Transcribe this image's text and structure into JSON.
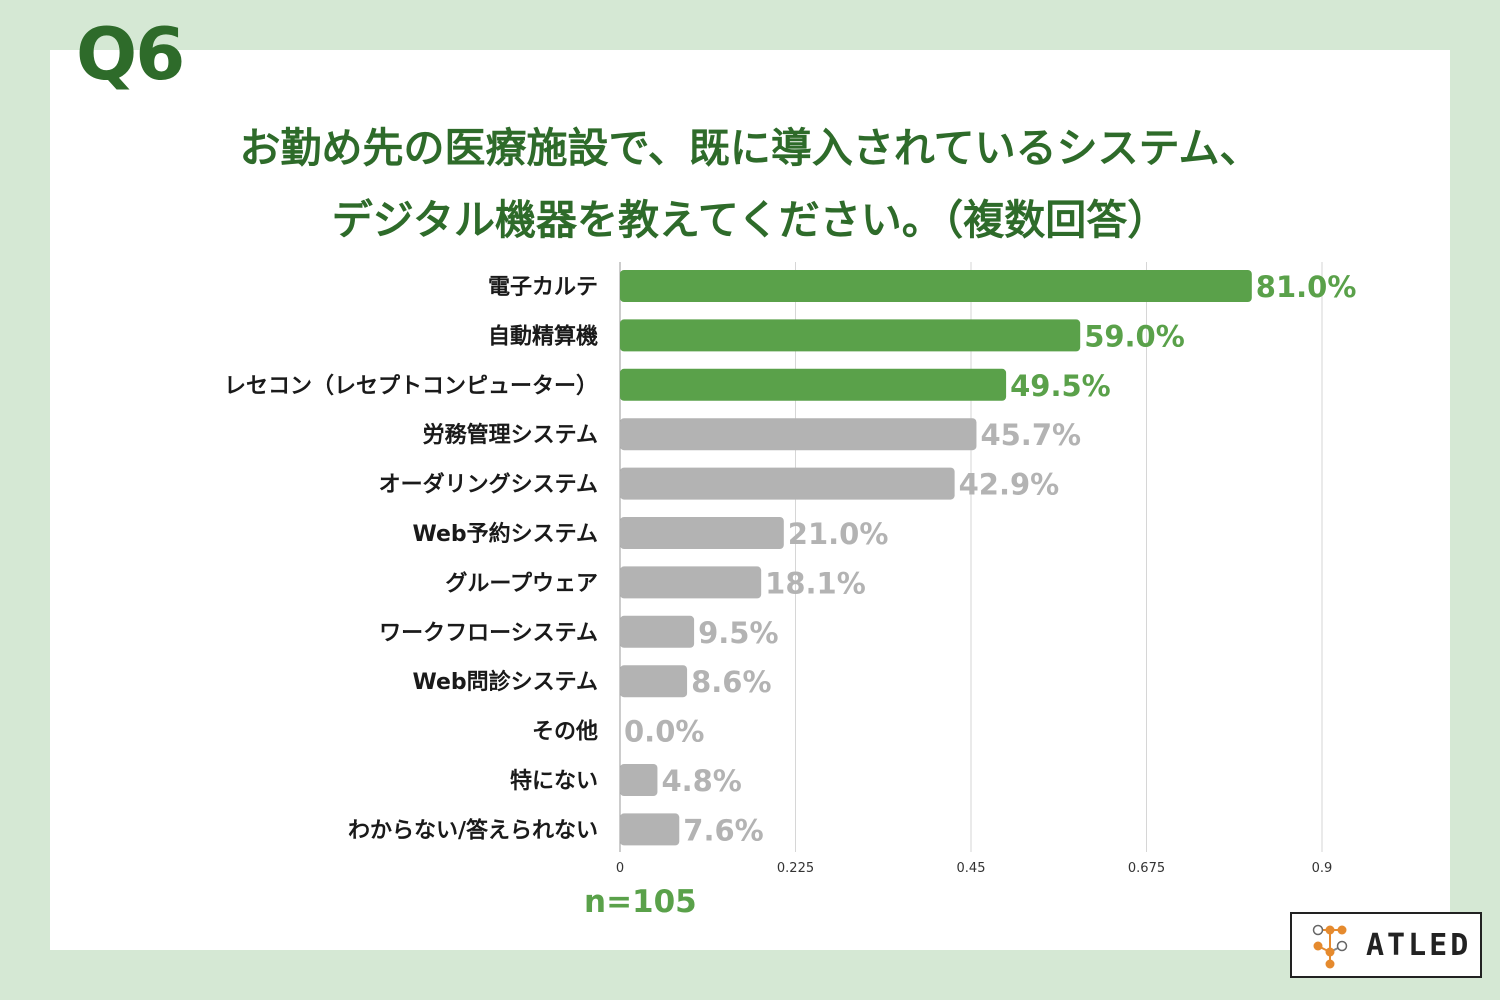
{
  "question_label": "Q6",
  "title_lines": [
    "お勤め先の医療施設で、既に導入されているシステム、",
    "デジタル機器を教えてください。（複数回答）"
  ],
  "sample_size": "n=105",
  "logo": {
    "text": "ATLED"
  },
  "colors": {
    "highlight": "#5aa14a",
    "base": "#b3b3b3",
    "title": "#2e6b2a",
    "background": "#d5e8d4"
  },
  "chart_data": {
    "type": "bar",
    "orientation": "horizontal",
    "categories": [
      "電子カルテ",
      "自動精算機",
      "レセコン（レセプトコンピューター）",
      "労務管理システム",
      "オーダリングシステム",
      "Web予約システム",
      "グループウェア",
      "ワークフローシステム",
      "Web問診システム",
      "その他",
      "特にない",
      "わからない/答えられない"
    ],
    "values": [
      0.81,
      0.59,
      0.495,
      0.457,
      0.429,
      0.21,
      0.181,
      0.095,
      0.086,
      0.0,
      0.048,
      0.076
    ],
    "value_labels": [
      "81.0%",
      "59.0%",
      "49.5%",
      "45.7%",
      "42.9%",
      "21.0%",
      "18.1%",
      "9.5%",
      "8.6%",
      "0.0%",
      "4.8%",
      "7.6%"
    ],
    "highlighted_top": 3,
    "xlim": [
      0,
      0.9
    ],
    "xticks": [
      0,
      0.225,
      0.45,
      0.675,
      0.9
    ],
    "xtick_labels": [
      "0",
      "0.225",
      "0.45",
      "0.675",
      "0.9"
    ],
    "grid": "vertical"
  }
}
